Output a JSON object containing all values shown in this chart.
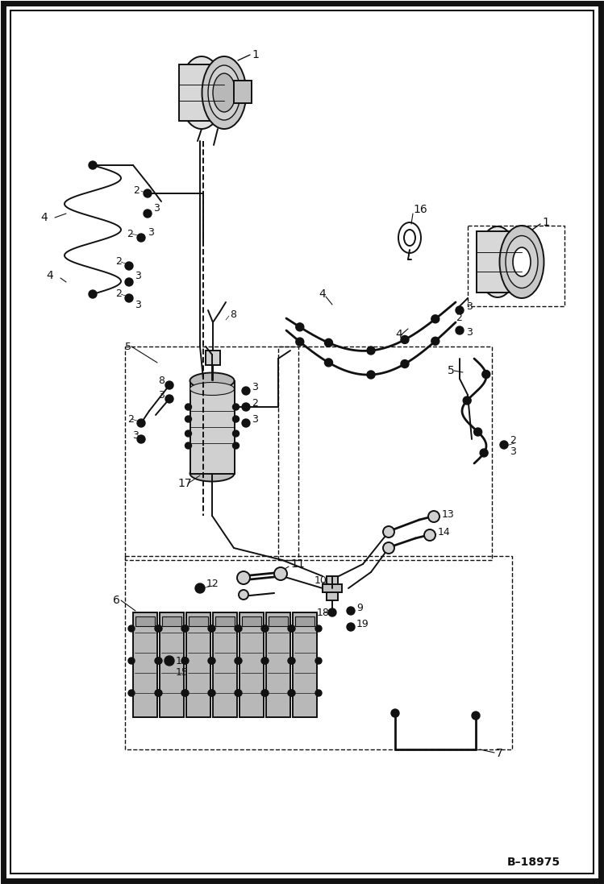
{
  "figure_width": 7.49,
  "figure_height": 10.97,
  "dpi": 100,
  "bg": "#ffffff",
  "lc": "#111111",
  "ref": "B–18975",
  "border_lw": 5,
  "inner_border_lw": 1.5
}
